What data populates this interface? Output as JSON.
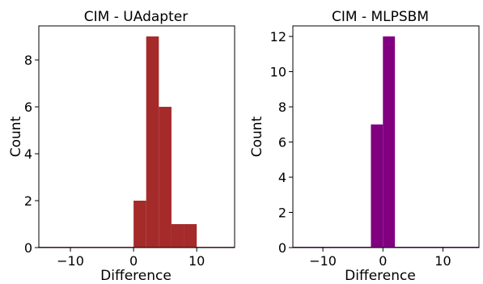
{
  "chart_data": [
    {
      "type": "bar",
      "title": "CIM - UAdapter",
      "xlabel": "Difference",
      "ylabel": "Count",
      "xlim": [
        -15,
        16
      ],
      "ylim": [
        0,
        9.45
      ],
      "xticks": [
        -10,
        0,
        10
      ],
      "yticks": [
        0,
        2,
        4,
        6,
        8
      ],
      "bins": [
        {
          "x0": 0,
          "x1": 2,
          "value": 2
        },
        {
          "x0": 2,
          "x1": 4,
          "value": 9
        },
        {
          "x0": 4,
          "x1": 6,
          "value": 6
        },
        {
          "x0": 6,
          "x1": 8,
          "value": 1
        },
        {
          "x0": 8,
          "x1": 10,
          "value": 1
        }
      ],
      "color": "#a52a2a",
      "grid": false
    },
    {
      "type": "bar",
      "title": "CIM - MLPSBM",
      "xlabel": "Difference",
      "ylabel": "Count",
      "xlim": [
        -15,
        16
      ],
      "ylim": [
        0,
        12.6
      ],
      "xticks": [
        -10,
        0,
        10
      ],
      "yticks": [
        0,
        2,
        4,
        6,
        8,
        10,
        12
      ],
      "bins": [
        {
          "x0": -2,
          "x1": 0,
          "value": 7
        },
        {
          "x0": 0,
          "x1": 2,
          "value": 12
        }
      ],
      "color": "#800080",
      "grid": false
    }
  ]
}
